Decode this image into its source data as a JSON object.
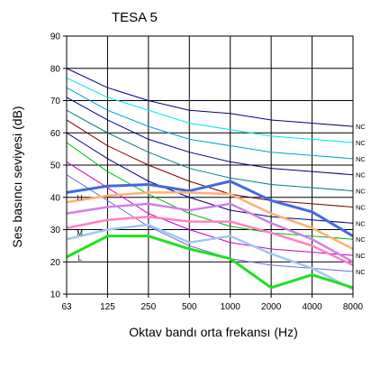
{
  "chart_data": {
    "type": "line",
    "title": "TESA 5",
    "xlabel": "Oktav bandı orta frekansı (Hz)",
    "ylabel": "Ses basıncı seviyesi (dB)",
    "categories": [
      "63",
      "125",
      "250",
      "500",
      "1000",
      "2000",
      "4000",
      "8000"
    ],
    "ylim": [
      10,
      90
    ],
    "yticks": [
      "10",
      "20",
      "30",
      "40",
      "50",
      "60",
      "70",
      "80",
      "90"
    ],
    "grid": true,
    "nc_curves": [
      {
        "label": "NC",
        "color": "#000080",
        "values": [
          80,
          74,
          70,
          67,
          66,
          64,
          63,
          62
        ]
      },
      {
        "label": "NC",
        "color": "#00e5ee",
        "values": [
          77,
          71,
          67,
          63,
          61,
          59,
          58,
          57
        ]
      },
      {
        "label": "NC",
        "color": "#00a0dc",
        "values": [
          74,
          67,
          62,
          58,
          56,
          54,
          53,
          52
        ]
      },
      {
        "label": "NC",
        "color": "#000080",
        "values": [
          71,
          64,
          58,
          54,
          51,
          49,
          48,
          47
        ]
      },
      {
        "label": "NC",
        "color": "#008080",
        "values": [
          67,
          60,
          54,
          49,
          46,
          44,
          43,
          42
        ]
      },
      {
        "label": "NC",
        "color": "#800000",
        "values": [
          64,
          56,
          50,
          45,
          41,
          39,
          38,
          37
        ]
      },
      {
        "label": "NC",
        "color": "#000080",
        "values": [
          60,
          52,
          45,
          40,
          36,
          34,
          33,
          32
        ]
      },
      {
        "label": "NC",
        "color": "#00c000",
        "values": [
          57,
          48,
          41,
          35,
          31,
          29,
          28,
          27
        ]
      },
      {
        "label": "NC",
        "color": "#cc00cc",
        "values": [
          51,
          43,
          35,
          30,
          26,
          24,
          23,
          22
        ]
      },
      {
        "label": "NC",
        "color": "#7070e0",
        "values": [
          47,
          39,
          31,
          25,
          21,
          19,
          18,
          17
        ]
      }
    ],
    "series": [
      {
        "name": "H",
        "color": "#4169e1",
        "width": 3,
        "values": [
          41.5,
          43.5,
          44,
          42,
          45,
          39,
          35.5,
          28
        ]
      },
      {
        "name": "",
        "color": "#ffb070",
        "width": 2.5,
        "values": [
          38.5,
          40.5,
          41.5,
          41.5,
          41,
          35,
          30.5,
          24
        ]
      },
      {
        "name": "",
        "color": "#d080e8",
        "width": 2.5,
        "values": [
          35,
          37,
          38,
          36,
          38,
          32,
          27,
          20
        ]
      },
      {
        "name": "M",
        "color": "#ff80c0",
        "width": 2.5,
        "values": [
          30.5,
          33,
          34,
          32.5,
          32.5,
          29,
          25,
          19
        ]
      },
      {
        "name": "",
        "color": "#a0c8f0",
        "width": 2.5,
        "values": [
          27,
          30,
          31.5,
          26,
          28,
          22.5,
          18,
          11.5
        ]
      },
      {
        "name": "L",
        "color": "#20e020",
        "width": 3,
        "values": [
          21.5,
          28,
          28,
          24,
          21,
          12,
          16,
          12
        ]
      }
    ]
  }
}
